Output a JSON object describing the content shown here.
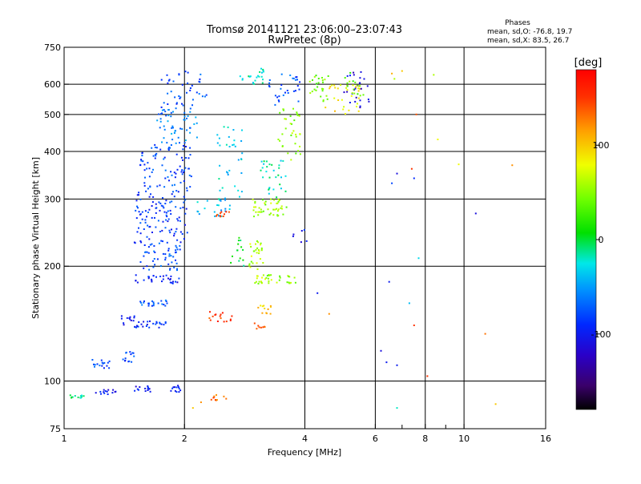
{
  "header": {
    "title": "Tromsø 20141121 23:06:00–23:07:43",
    "subtitle": "RwPretec (8p)"
  },
  "stats": {
    "heading": "Phases",
    "line_o": "mean, sd,O: -76.8, 19.7",
    "line_x": "mean, sd,X:  83.5, 26.7"
  },
  "colorbar": {
    "unit": "[deg]",
    "range": [
      -180,
      180
    ],
    "ticks": [
      {
        "label": "100",
        "value": 100
      },
      {
        "label": "0",
        "value": 0
      },
      {
        "label": "-100",
        "value": -100
      }
    ]
  },
  "chart_data": {
    "type": "scatter",
    "xlabel": "Frequency [MHz]",
    "ylabel": "Stationary phase Virtual Height [km]",
    "x_scale": "log",
    "y_scale": "log",
    "xlim": [
      1,
      16
    ],
    "ylim": [
      75,
      750
    ],
    "x_ticks": [
      {
        "label": "1",
        "value": 1
      },
      {
        "label": "2",
        "value": 2
      },
      {
        "label": "4",
        "value": 4
      },
      {
        "label": "6",
        "value": 6
      },
      {
        "label": "8",
        "value": 8
      },
      {
        "label": "10",
        "value": 10
      },
      {
        "label": "16",
        "value": 16
      }
    ],
    "x_grid": [
      2,
      4,
      6,
      8,
      10
    ],
    "x_minor": [
      7,
      9
    ],
    "y_ticks": [
      {
        "label": "750",
        "value": 750
      },
      {
        "label": "600",
        "value": 600
      },
      {
        "label": "500",
        "value": 500
      },
      {
        "label": "400",
        "value": 400
      },
      {
        "label": "300",
        "value": 300
      },
      {
        "label": "200",
        "value": 200
      },
      {
        "label": "100",
        "value": 100
      },
      {
        "label": "75",
        "value": 75
      }
    ],
    "y_grid": [
      600,
      500,
      400,
      300,
      200,
      100
    ],
    "clusters": [
      {
        "f": [
          1.02,
          1.12
        ],
        "h": [
          90,
          92
        ],
        "phase": -10,
        "n": 12
      },
      {
        "f": [
          1.2,
          1.35
        ],
        "h": [
          92,
          96
        ],
        "phase": -100,
        "n": 14
      },
      {
        "f": [
          1.5,
          1.65
        ],
        "h": [
          93,
          97
        ],
        "phase": -100,
        "n": 14
      },
      {
        "f": [
          1.85,
          1.98
        ],
        "h": [
          93,
          98
        ],
        "phase": -100,
        "n": 12
      },
      {
        "f": [
          2.3,
          2.6
        ],
        "h": [
          89,
          92
        ],
        "phase": 130,
        "n": 10
      },
      {
        "f": [
          1.13,
          1.3
        ],
        "h": [
          108,
          114
        ],
        "phase": -80,
        "n": 16
      },
      {
        "f": [
          1.4,
          1.5
        ],
        "h": [
          112,
          120
        ],
        "phase": -80,
        "n": 14
      },
      {
        "f": [
          1.38,
          1.5
        ],
        "h": [
          140,
          150
        ],
        "phase": -100,
        "n": 12
      },
      {
        "f": [
          1.5,
          1.8
        ],
        "h": [
          138,
          144
        ],
        "phase": -90,
        "n": 26
      },
      {
        "f": [
          1.55,
          1.82
        ],
        "h": [
          157,
          163
        ],
        "phase": -75,
        "n": 22
      },
      {
        "f": [
          1.5,
          1.95
        ],
        "h": [
          180,
          190
        ],
        "phase": -95,
        "n": 30
      },
      {
        "f": [
          1.55,
          1.95
        ],
        "h": [
          195,
          230
        ],
        "phase": -80,
        "n": 50
      },
      {
        "f": [
          1.5,
          2.05
        ],
        "h": [
          230,
          320
        ],
        "phase": -85,
        "n": 110
      },
      {
        "f": [
          1.55,
          2.1
        ],
        "h": [
          320,
          420
        ],
        "phase": -80,
        "n": 80
      },
      {
        "f": [
          1.7,
          2.15
        ],
        "h": [
          420,
          520
        ],
        "phase": -60,
        "n": 55
      },
      {
        "f": [
          1.75,
          2.3
        ],
        "h": [
          520,
          650
        ],
        "phase": -80,
        "n": 40
      },
      {
        "f": [
          2.1,
          2.6
        ],
        "h": [
          270,
          300
        ],
        "phase": -40,
        "n": 22
      },
      {
        "f": [
          2.4,
          2.8
        ],
        "h": [
          300,
          470
        ],
        "phase": -30,
        "n": 35
      },
      {
        "f": [
          2.3,
          2.65
        ],
        "h": [
          143,
          152
        ],
        "phase": 150,
        "n": 16
      },
      {
        "f": [
          2.4,
          2.6
        ],
        "h": [
          268,
          278
        ],
        "phase": 150,
        "n": 10
      },
      {
        "f": [
          2.6,
          2.85
        ],
        "h": [
          200,
          240
        ],
        "phase": 0,
        "n": 14
      },
      {
        "f": [
          2.75,
          3.2
        ],
        "h": [
          600,
          660
        ],
        "phase": -20,
        "n": 22
      },
      {
        "f": [
          2.9,
          3.15
        ],
        "h": [
          196,
          235
        ],
        "phase": 60,
        "n": 28
      },
      {
        "f": [
          2.95,
          3.6
        ],
        "h": [
          270,
          300
        ],
        "phase": 55,
        "n": 45
      },
      {
        "f": [
          3.0,
          3.35
        ],
        "h": [
          180,
          190
        ],
        "phase": 60,
        "n": 18
      },
      {
        "f": [
          3.05,
          3.3
        ],
        "h": [
          150,
          158
        ],
        "phase": 100,
        "n": 12
      },
      {
        "f": [
          2.95,
          3.2
        ],
        "h": [
          137,
          142
        ],
        "phase": 140,
        "n": 8
      },
      {
        "f": [
          3.2,
          3.8
        ],
        "h": [
          180,
          190
        ],
        "phase": 50,
        "n": 18
      },
      {
        "f": [
          3.1,
          3.6
        ],
        "h": [
          300,
          380
        ],
        "phase": -20,
        "n": 30
      },
      {
        "f": [
          3.4,
          3.9
        ],
        "h": [
          380,
          520
        ],
        "phase": 50,
        "n": 35
      },
      {
        "f": [
          3.2,
          3.9
        ],
        "h": [
          520,
          640
        ],
        "phase": -75,
        "n": 30
      },
      {
        "f": [
          3.7,
          4.1
        ],
        "h": [
          230,
          250
        ],
        "phase": -100,
        "n": 6
      },
      {
        "f": [
          4.1,
          4.6
        ],
        "h": [
          540,
          640
        ],
        "phase": 40,
        "n": 25
      },
      {
        "f": [
          4.5,
          5.5
        ],
        "h": [
          500,
          600
        ],
        "phase": 90,
        "n": 30
      },
      {
        "f": [
          5.0,
          5.8
        ],
        "h": [
          520,
          650
        ],
        "phase": -110,
        "n": 25
      },
      {
        "f": [
          5.0,
          5.7
        ],
        "h": [
          560,
          650
        ],
        "phase": 40,
        "n": 15
      }
    ],
    "points": [
      {
        "f": 6.5,
        "h": 182,
        "phase": -100
      },
      {
        "f": 6.6,
        "h": 330,
        "phase": -80
      },
      {
        "f": 6.8,
        "h": 350,
        "phase": -110
      },
      {
        "f": 7.4,
        "h": 360,
        "phase": 150
      },
      {
        "f": 7.5,
        "h": 340,
        "phase": -90
      },
      {
        "f": 7.5,
        "h": 140,
        "phase": 150
      },
      {
        "f": 7.6,
        "h": 500,
        "phase": 140
      },
      {
        "f": 7.7,
        "h": 210,
        "phase": -30
      },
      {
        "f": 7.3,
        "h": 160,
        "phase": -40
      },
      {
        "f": 8.1,
        "h": 103,
        "phase": 150
      },
      {
        "f": 8.4,
        "h": 635,
        "phase": 60
      },
      {
        "f": 8.6,
        "h": 430,
        "phase": 80
      },
      {
        "f": 9.7,
        "h": 370,
        "phase": 80
      },
      {
        "f": 10.7,
        "h": 275,
        "phase": -110
      },
      {
        "f": 11.3,
        "h": 133,
        "phase": 130
      },
      {
        "f": 13.2,
        "h": 368,
        "phase": 120
      },
      {
        "f": 12.0,
        "h": 87,
        "phase": 100
      },
      {
        "f": 6.8,
        "h": 85,
        "phase": -20
      },
      {
        "f": 6.6,
        "h": 640,
        "phase": 110
      },
      {
        "f": 6.7,
        "h": 620,
        "phase": 60
      },
      {
        "f": 7.0,
        "h": 650,
        "phase": 100
      },
      {
        "f": 6.2,
        "h": 120,
        "phase": -110
      },
      {
        "f": 6.4,
        "h": 112,
        "phase": -100
      },
      {
        "f": 6.8,
        "h": 110,
        "phase": -100
      },
      {
        "f": 4.6,
        "h": 150,
        "phase": 120
      },
      {
        "f": 4.3,
        "h": 170,
        "phase": -100
      },
      {
        "f": 2.1,
        "h": 85,
        "phase": 100
      },
      {
        "f": 2.2,
        "h": 88,
        "phase": 120
      }
    ]
  }
}
